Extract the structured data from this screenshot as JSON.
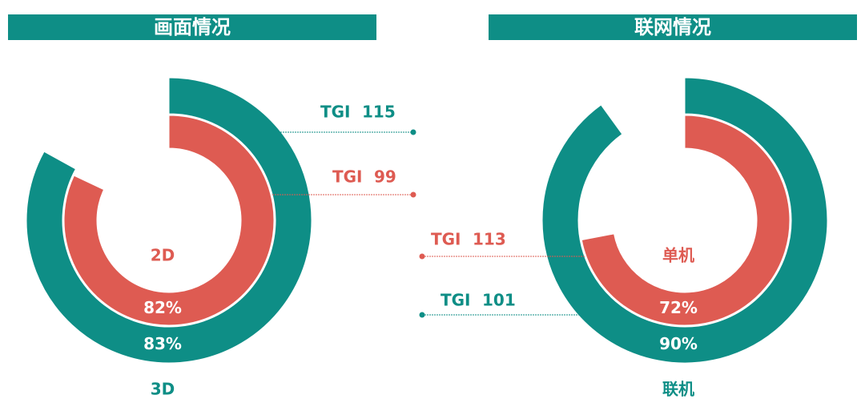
{
  "chart_data": [
    {
      "type": "radial-bar",
      "title": "画面情况",
      "tgi_label": "TGI",
      "series": [
        {
          "name": "3D",
          "color": "#0e8e86",
          "values": [
            83
          ],
          "value_labels": [
            "83%"
          ],
          "tgi": 115
        },
        {
          "name": "2D",
          "color": "#de5b52",
          "values": [
            82
          ],
          "value_labels": [
            "82%"
          ],
          "tgi": 99
        }
      ]
    },
    {
      "type": "radial-bar",
      "title": "联网情况",
      "tgi_label": "TGI",
      "series": [
        {
          "name": "联机",
          "color": "#0e8e86",
          "values": [
            90
          ],
          "value_labels": [
            "90%"
          ],
          "tgi": 101
        },
        {
          "name": "单机",
          "color": "#de5b52",
          "values": [
            72
          ],
          "value_labels": [
            "72%"
          ],
          "tgi": 113
        }
      ]
    }
  ]
}
